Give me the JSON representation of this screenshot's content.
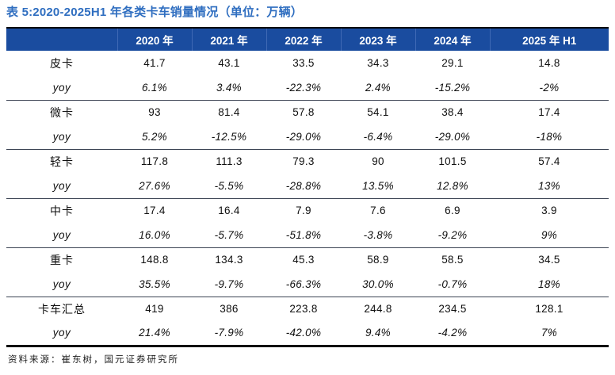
{
  "title": "表 5:2020-2025H1 年各类卡车销量情况（单位：万辆）",
  "source_note": "资料来源：崔东树，国元证券研究所",
  "colors": {
    "title_blue": "#2f6ec0",
    "header_bg": "#1a4c9f",
    "header_separator": "#3f69b5",
    "row_separator": "#3c4454"
  },
  "table": {
    "yoy_label": "yoy",
    "columns": [
      "2020 年",
      "2021 年",
      "2022 年",
      "2023 年",
      "2024 年",
      "2025 年 H1"
    ],
    "groups": [
      {
        "label": "皮卡",
        "values": [
          "41.7",
          "43.1",
          "33.5",
          "34.3",
          "29.1",
          "14.8"
        ],
        "yoy": [
          "6.1%",
          "3.4%",
          "-22.3%",
          "2.4%",
          "-15.2%",
          "-2%"
        ]
      },
      {
        "label": "微卡",
        "values": [
          "93",
          "81.4",
          "57.8",
          "54.1",
          "38.4",
          "17.4"
        ],
        "yoy": [
          "5.2%",
          "-12.5%",
          "-29.0%",
          "-6.4%",
          "-29.0%",
          "-18%"
        ]
      },
      {
        "label": "轻卡",
        "values": [
          "117.8",
          "111.3",
          "79.3",
          "90",
          "101.5",
          "57.4"
        ],
        "yoy": [
          "27.6%",
          "-5.5%",
          "-28.8%",
          "13.5%",
          "12.8%",
          "13%"
        ]
      },
      {
        "label": "中卡",
        "values": [
          "17.4",
          "16.4",
          "7.9",
          "7.6",
          "6.9",
          "3.9"
        ],
        "yoy": [
          "16.0%",
          "-5.7%",
          "-51.8%",
          "-3.8%",
          "-9.2%",
          "9%"
        ]
      },
      {
        "label": "重卡",
        "values": [
          "148.8",
          "134.3",
          "45.3",
          "58.9",
          "58.5",
          "34.5"
        ],
        "yoy": [
          "35.5%",
          "-9.7%",
          "-66.3%",
          "30.0%",
          "-0.7%",
          "18%"
        ]
      },
      {
        "label": "卡车汇总",
        "values": [
          "419",
          "386",
          "223.8",
          "244.8",
          "234.5",
          "128.1"
        ],
        "yoy": [
          "21.4%",
          "-7.9%",
          "-42.0%",
          "9.4%",
          "-4.2%",
          "7%"
        ]
      }
    ]
  }
}
